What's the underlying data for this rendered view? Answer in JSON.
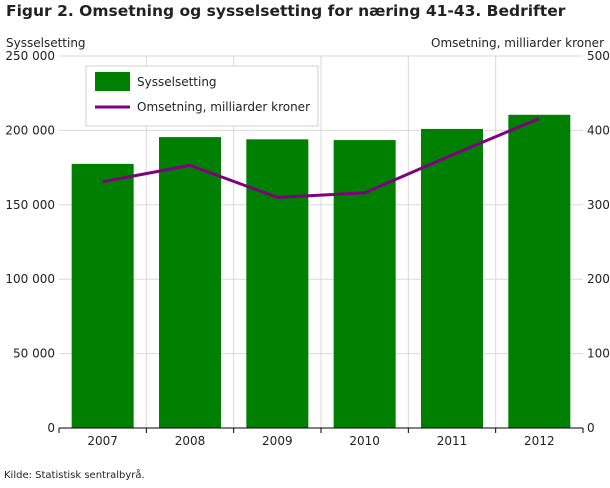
{
  "title": "Figur 2. Omsetning og sysselsetting for næring 41-43. Bedrifter",
  "source": "Kilde: Statistisk sentralbyrå.",
  "colors": {
    "bars": "#008000",
    "line": "#800080",
    "grid": "#d9d9d9",
    "axis": "#000000"
  },
  "chart_data": {
    "type": "bar",
    "title": "Figur 2. Omsetning og sysselsetting for næring 41-43. Bedrifter",
    "categories": [
      "2007",
      "2008",
      "2009",
      "2010",
      "2011",
      "2012"
    ],
    "ylabel_left": "Sysselsetting",
    "ylabel_right": "Omsetning, milliarder kroner",
    "ylim_left": [
      0,
      250000
    ],
    "ylim_right": [
      0,
      500
    ],
    "yticks_left": [
      "0",
      "50 000",
      "100 000",
      "150 000",
      "200 000",
      "250 000"
    ],
    "yticks_right": [
      "0",
      "100",
      "200",
      "300",
      "400",
      "500"
    ],
    "grid": true,
    "legend_position": "top-left",
    "series": [
      {
        "name": "Sysselsetting",
        "type": "bar",
        "axis": "left",
        "values": [
          177500,
          195500,
          194000,
          193500,
          201000,
          210500
        ]
      },
      {
        "name": "Omsetning, milliarder kroner",
        "type": "line",
        "axis": "right",
        "values": [
          331,
          353,
          310,
          316,
          367,
          416
        ]
      }
    ]
  }
}
